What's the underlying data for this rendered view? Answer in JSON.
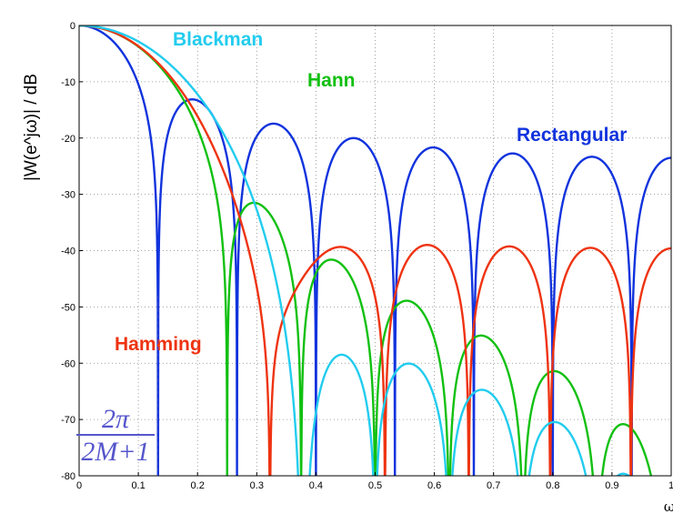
{
  "chart_data": {
    "type": "line",
    "xlabel": "ω",
    "ylabel": "|W(e^jω)| / dB",
    "xlim": [
      0,
      1
    ],
    "ylim": [
      -80,
      0
    ],
    "xticks": [
      "0",
      "0.1",
      "0.2",
      "0.3",
      "0.4",
      "0.5",
      "0.6",
      "0.7",
      "0.8",
      "0.9",
      "1"
    ],
    "yticks": [
      "0",
      "-10",
      "-20",
      "-30",
      "-40",
      "-50",
      "-60",
      "-70",
      "-80"
    ],
    "grid": true,
    "window_length_M": 7,
    "series": [
      {
        "name": "Rectangular",
        "color": "#1133dd",
        "kind": "rectangular"
      },
      {
        "name": "Hann",
        "color": "#11c011",
        "kind": "hann"
      },
      {
        "name": "Hamming",
        "color": "#ee3311",
        "kind": "hamming"
      },
      {
        "name": "Blackman",
        "color": "#22ccee",
        "kind": "blackman"
      }
    ],
    "labels": {
      "blackman": "Blackman",
      "hann": "Hann",
      "rectangular": "Rectangular",
      "hamming": "Hamming"
    },
    "annotation": {
      "numerator": "2π",
      "denominator": "2M+1",
      "x": 0.1333,
      "y_top": -48
    }
  }
}
